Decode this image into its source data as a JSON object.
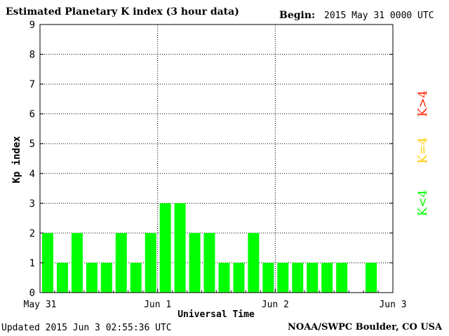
{
  "header": {
    "title": "Estimated Planetary K index (3 hour data)",
    "begin_label": "Begin:",
    "begin_value": "2015 May 31 0000 UTC"
  },
  "footer": {
    "updated": "Updated 2015 Jun  3 02:55:36 UTC",
    "source": "NOAA/SWPC Boulder, CO USA"
  },
  "chart_data": {
    "type": "bar",
    "title": "Estimated Planetary K index (3 hour data)",
    "xlabel": "Universal Time",
    "ylabel": "Kp index",
    "ylim": [
      0,
      9
    ],
    "yticks": [
      0,
      1,
      2,
      3,
      4,
      5,
      6,
      7,
      8,
      9
    ],
    "xlim": [
      "2015-05-31 00:00",
      "2015-06-03 00:00"
    ],
    "xticks": [
      "May 31",
      "Jun 1",
      "Jun 2",
      "Jun 3"
    ],
    "grid": true,
    "bar_interval": "3 hour",
    "x": [
      "2015-05-31 00:00",
      "2015-05-31 03:00",
      "2015-05-31 06:00",
      "2015-05-31 09:00",
      "2015-05-31 12:00",
      "2015-05-31 15:00",
      "2015-05-31 18:00",
      "2015-05-31 21:00",
      "2015-06-01 00:00",
      "2015-06-01 03:00",
      "2015-06-01 06:00",
      "2015-06-01 09:00",
      "2015-06-01 12:00",
      "2015-06-01 15:00",
      "2015-06-01 18:00",
      "2015-06-01 21:00",
      "2015-06-02 00:00",
      "2015-06-02 03:00",
      "2015-06-02 06:00",
      "2015-06-02 09:00",
      "2015-06-02 12:00",
      "2015-06-02 15:00",
      "2015-06-02 18:00",
      "2015-06-02 21:00"
    ],
    "values": [
      2,
      1,
      2,
      1,
      1,
      2,
      1,
      2,
      3,
      3,
      2,
      2,
      1,
      1,
      2,
      1,
      1,
      1,
      1,
      1,
      1,
      null,
      1,
      null
    ],
    "bar_color": "#00ff00",
    "legend": [
      {
        "label": "K<4",
        "color": "#00ff00"
      },
      {
        "label": "K=4",
        "color": "#ffcc00"
      },
      {
        "label": "K>4",
        "color": "#ff2200"
      }
    ]
  }
}
